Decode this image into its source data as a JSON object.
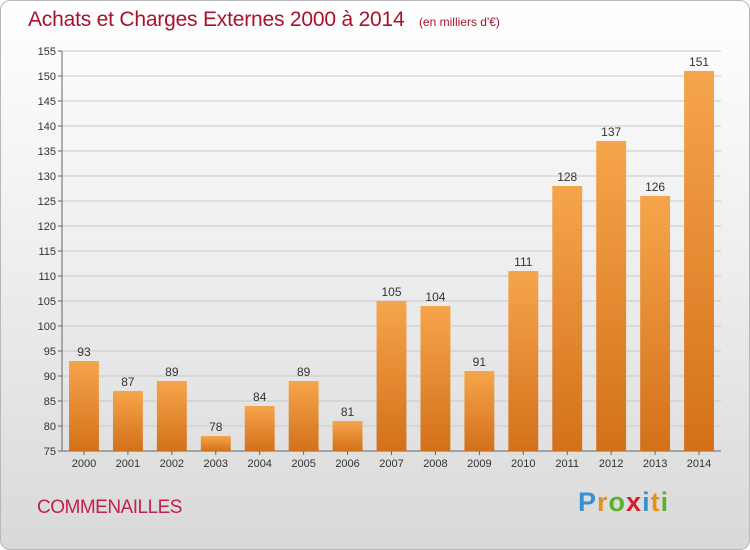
{
  "title": "Achats et Charges Externes 2000 à 2014",
  "subtitle": "(en milliers d'€)",
  "town": "COMMENAILLES",
  "logo": {
    "letters": [
      "P",
      "r",
      "o",
      "x",
      "i",
      "t",
      "i"
    ],
    "colors": [
      "#3a8fd0",
      "#e8901e",
      "#5cb030",
      "#d0202a",
      "#3a8fd0",
      "#e8901e",
      "#5cb030"
    ]
  },
  "colors": {
    "bar_light": "#f6a54b",
    "bar_dark": "#d3711a",
    "title": "#a8122a"
  },
  "chart_data": {
    "type": "bar",
    "title": "Achats et Charges Externes 2000 à 2014",
    "subtitle": "(en milliers d'€)",
    "categories": [
      "2000",
      "2001",
      "2002",
      "2003",
      "2004",
      "2005",
      "2006",
      "2007",
      "2008",
      "2009",
      "2010",
      "2011",
      "2012",
      "2013",
      "2014"
    ],
    "values": [
      93,
      87,
      89,
      78,
      84,
      89,
      81,
      105,
      104,
      91,
      111,
      128,
      137,
      126,
      151
    ],
    "ylim": [
      75,
      155
    ],
    "yticks": [
      75,
      80,
      85,
      90,
      95,
      100,
      105,
      110,
      115,
      120,
      125,
      130,
      135,
      140,
      145,
      150,
      155
    ],
    "grid": true
  }
}
